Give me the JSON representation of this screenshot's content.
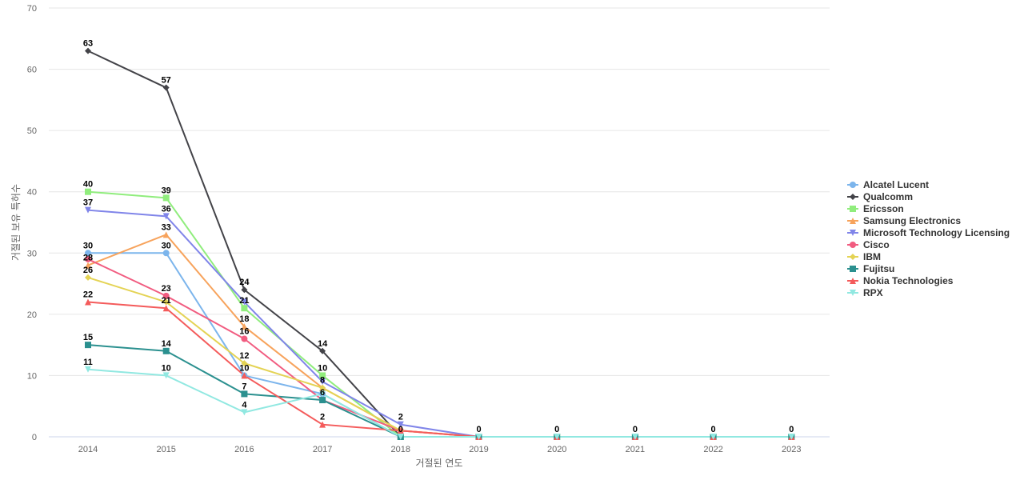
{
  "chart_data": {
    "type": "line",
    "xlabel": "거절된 연도",
    "ylabel": "거절된 보유 특허수",
    "ylim": [
      0,
      70
    ],
    "yticks": [
      0,
      10,
      20,
      30,
      40,
      50,
      60,
      70
    ],
    "grid": true,
    "legend_position": "right",
    "categories": [
      "2014",
      "2015",
      "2016",
      "2017",
      "2018",
      "2019",
      "2020",
      "2021",
      "2022",
      "2023"
    ],
    "series": [
      {
        "name": "Alcatel Lucent",
        "color": "#7cb5ec",
        "marker": "circle",
        "values": [
          30,
          30,
          10,
          7,
          0,
          0,
          0,
          0,
          0,
          0
        ]
      },
      {
        "name": "Qualcomm",
        "color": "#434348",
        "marker": "diamond",
        "values": [
          63,
          57,
          24,
          14,
          0,
          0,
          0,
          0,
          0,
          0
        ]
      },
      {
        "name": "Ericsson",
        "color": "#90ed7d",
        "marker": "square",
        "values": [
          40,
          39,
          21,
          10,
          0,
          0,
          0,
          0,
          0,
          0
        ]
      },
      {
        "name": "Samsung Electronics",
        "color": "#f7a35c",
        "marker": "triangle",
        "values": [
          28,
          33,
          18,
          8,
          1,
          0,
          0,
          0,
          0,
          0
        ]
      },
      {
        "name": "Microsoft Technology Licensing",
        "color": "#8085e9",
        "marker": "triangle-down",
        "values": [
          37,
          36,
          22,
          9,
          2,
          0,
          0,
          0,
          0,
          0
        ]
      },
      {
        "name": "Cisco",
        "color": "#f15c80",
        "marker": "circle",
        "values": [
          29,
          23,
          16,
          6,
          1,
          0,
          0,
          0,
          0,
          0
        ]
      },
      {
        "name": "IBM",
        "color": "#e4d354",
        "marker": "diamond",
        "values": [
          26,
          22,
          12,
          8,
          1,
          0,
          0,
          0,
          0,
          0
        ]
      },
      {
        "name": "Fujitsu",
        "color": "#2b908f",
        "marker": "square",
        "values": [
          15,
          14,
          7,
          6,
          0,
          0,
          0,
          0,
          0,
          0
        ]
      },
      {
        "name": "Nokia Technologies",
        "color": "#f45b5b",
        "marker": "triangle",
        "values": [
          22,
          21,
          10,
          2,
          1,
          0,
          0,
          0,
          0,
          0
        ]
      },
      {
        "name": "RPX",
        "color": "#91e8e1",
        "marker": "triangle-down",
        "values": [
          11,
          10,
          4,
          7,
          0,
          0,
          0,
          0,
          0,
          0
        ]
      }
    ],
    "data_labels": [
      {
        "x": "2014",
        "value": 63,
        "text": "63"
      },
      {
        "x": "2014",
        "value": 40,
        "text": "40"
      },
      {
        "x": "2014",
        "value": 37,
        "text": "37"
      },
      {
        "x": "2014",
        "value": 30,
        "text": "30"
      },
      {
        "x": "2014",
        "value": 28,
        "text": "28"
      },
      {
        "x": "2014",
        "value": 26,
        "text": "26"
      },
      {
        "x": "2014",
        "value": 22,
        "text": "22"
      },
      {
        "x": "2014",
        "value": 15,
        "text": "15"
      },
      {
        "x": "2014",
        "value": 11,
        "text": "11"
      },
      {
        "x": "2015",
        "value": 57,
        "text": "57"
      },
      {
        "x": "2015",
        "value": 39,
        "text": "39"
      },
      {
        "x": "2015",
        "value": 36,
        "text": "36"
      },
      {
        "x": "2015",
        "value": 33,
        "text": "33"
      },
      {
        "x": "2015",
        "value": 30,
        "text": "30"
      },
      {
        "x": "2015",
        "value": 23,
        "text": "23"
      },
      {
        "x": "2015",
        "value": 21,
        "text": "21"
      },
      {
        "x": "2015",
        "value": 14,
        "text": "14"
      },
      {
        "x": "2015",
        "value": 10,
        "text": "10"
      },
      {
        "x": "2016",
        "value": 24,
        "text": "24"
      },
      {
        "x": "2016",
        "value": 21,
        "text": "21"
      },
      {
        "x": "2016",
        "value": 18,
        "text": "18"
      },
      {
        "x": "2016",
        "value": 16,
        "text": "16"
      },
      {
        "x": "2016",
        "value": 12,
        "text": "12"
      },
      {
        "x": "2016",
        "value": 10,
        "text": "10"
      },
      {
        "x": "2016",
        "value": 7,
        "text": "7"
      },
      {
        "x": "2016",
        "value": 4,
        "text": "4"
      },
      {
        "x": "2017",
        "value": 14,
        "text": "14"
      },
      {
        "x": "2017",
        "value": 10,
        "text": "10"
      },
      {
        "x": "2017",
        "value": 8,
        "text": "8"
      },
      {
        "x": "2017",
        "value": 6,
        "text": "6"
      },
      {
        "x": "2017",
        "value": 2,
        "text": "2"
      },
      {
        "x": "2018",
        "value": 2,
        "text": "2"
      },
      {
        "x": "2018",
        "value": 0,
        "text": "0"
      },
      {
        "x": "2019",
        "value": 0,
        "text": "0"
      },
      {
        "x": "2020",
        "value": 0,
        "text": "0"
      },
      {
        "x": "2021",
        "value": 0,
        "text": "0"
      },
      {
        "x": "2022",
        "value": 0,
        "text": "0"
      },
      {
        "x": "2023",
        "value": 0,
        "text": "0"
      }
    ]
  }
}
